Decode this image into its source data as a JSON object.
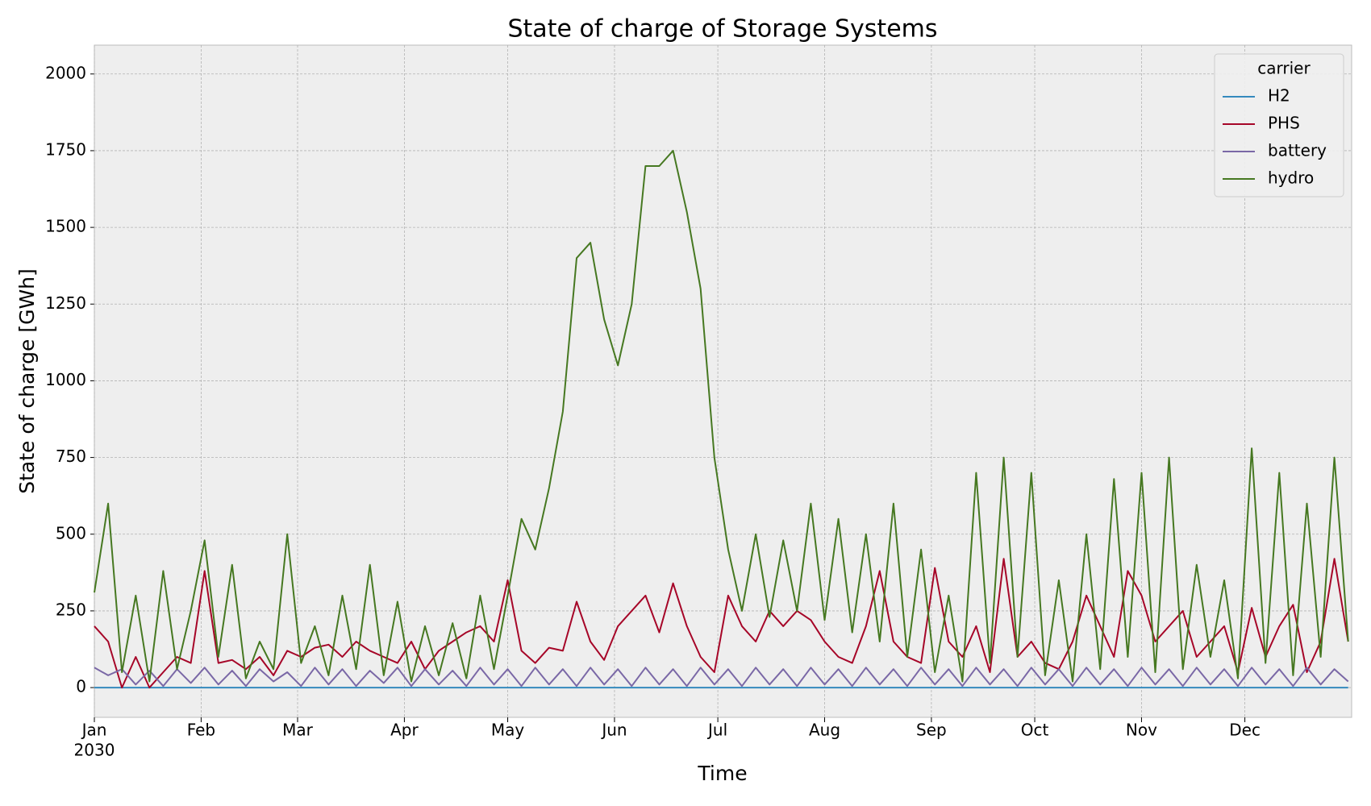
{
  "chart_data": {
    "type": "line",
    "title": "State of charge of Storage Systems",
    "x_label": "Time",
    "y_label": "State of charge [GWh]",
    "x_year_label": "2030",
    "legend_title": "carrier",
    "legend": "upper right",
    "grid": true,
    "xlim": [
      0,
      365
    ],
    "xticks": [
      {
        "value": 0,
        "label": "Jan"
      },
      {
        "value": 31,
        "label": "Feb"
      },
      {
        "value": 59,
        "label": "Mar"
      },
      {
        "value": 90,
        "label": "Apr"
      },
      {
        "value": 120,
        "label": "May"
      },
      {
        "value": 151,
        "label": "Jun"
      },
      {
        "value": 181,
        "label": "Jul"
      },
      {
        "value": 212,
        "label": "Aug"
      },
      {
        "value": 243,
        "label": "Sep"
      },
      {
        "value": 273,
        "label": "Oct"
      },
      {
        "value": 304,
        "label": "Nov"
      },
      {
        "value": 334,
        "label": "Dec"
      }
    ],
    "ylim": [
      -97,
      2094
    ],
    "yticks": [
      0,
      250,
      500,
      750,
      1000,
      1250,
      1500,
      1750,
      2000
    ],
    "x": [
      0,
      4,
      8,
      12,
      16,
      20,
      24,
      28,
      32,
      36,
      40,
      44,
      48,
      52,
      56,
      60,
      64,
      68,
      72,
      76,
      80,
      84,
      88,
      92,
      96,
      100,
      104,
      108,
      112,
      116,
      120,
      124,
      128,
      132,
      136,
      140,
      144,
      148,
      152,
      156,
      160,
      164,
      168,
      172,
      176,
      180,
      184,
      188,
      192,
      196,
      200,
      204,
      208,
      212,
      216,
      220,
      224,
      228,
      232,
      236,
      240,
      244,
      248,
      252,
      256,
      260,
      264,
      268,
      272,
      276,
      280,
      284,
      288,
      292,
      296,
      300,
      304,
      308,
      312,
      316,
      320,
      324,
      328,
      332,
      336,
      340,
      344,
      348,
      352,
      356,
      360,
      364
    ],
    "series": [
      {
        "name": "H2",
        "color": "#348ABD",
        "values": [
          0,
          0,
          0,
          0,
          0,
          0,
          0,
          0,
          0,
          0,
          0,
          0,
          0,
          0,
          0,
          0,
          0,
          0,
          0,
          0,
          0,
          0,
          0,
          0,
          0,
          0,
          0,
          0,
          0,
          0,
          0,
          0,
          0,
          0,
          0,
          0,
          0,
          0,
          0,
          0,
          0,
          0,
          0,
          0,
          0,
          0,
          0,
          0,
          0,
          0,
          0,
          0,
          0,
          0,
          0,
          0,
          0,
          0,
          0,
          0,
          0,
          0,
          0,
          0,
          0,
          0,
          0,
          0,
          0,
          0,
          0,
          0,
          0,
          0,
          0,
          0,
          0,
          0,
          0,
          0,
          0,
          0,
          0,
          0,
          0,
          0,
          0,
          0,
          0,
          0,
          0,
          0
        ]
      },
      {
        "name": "PHS",
        "color": "#A60628",
        "values": [
          200,
          150,
          0,
          100,
          0,
          50,
          100,
          80,
          380,
          80,
          90,
          60,
          100,
          40,
          120,
          100,
          130,
          140,
          100,
          150,
          120,
          100,
          80,
          150,
          60,
          120,
          150,
          180,
          200,
          150,
          350,
          120,
          80,
          130,
          120,
          280,
          150,
          90,
          200,
          250,
          300,
          180,
          340,
          200,
          100,
          50,
          300,
          200,
          150,
          250,
          200,
          250,
          220,
          150,
          100,
          80,
          200,
          380,
          150,
          100,
          80,
          390,
          150,
          100,
          200,
          50,
          420,
          100,
          150,
          80,
          60,
          150,
          300,
          200,
          100,
          380,
          300,
          150,
          200,
          250,
          100,
          150,
          200,
          50,
          260,
          100,
          200,
          270,
          50,
          150,
          420,
          150
        ]
      },
      {
        "name": "battery",
        "color": "#7A68A6",
        "values": [
          65,
          40,
          60,
          10,
          55,
          5,
          60,
          15,
          65,
          10,
          55,
          5,
          60,
          20,
          50,
          5,
          65,
          10,
          60,
          5,
          55,
          15,
          65,
          5,
          60,
          10,
          55,
          5,
          65,
          10,
          60,
          5,
          65,
          10,
          60,
          5,
          65,
          10,
          60,
          5,
          65,
          10,
          60,
          5,
          65,
          10,
          60,
          5,
          65,
          10,
          60,
          5,
          65,
          10,
          60,
          5,
          65,
          10,
          60,
          5,
          65,
          10,
          60,
          5,
          65,
          10,
          60,
          5,
          65,
          10,
          60,
          5,
          65,
          10,
          60,
          5,
          65,
          10,
          60,
          5,
          65,
          10,
          60,
          5,
          65,
          10,
          60,
          5,
          65,
          10,
          60,
          20
        ]
      },
      {
        "name": "hydro",
        "color": "#467821",
        "values": [
          310,
          600,
          50,
          300,
          20,
          380,
          60,
          250,
          480,
          100,
          400,
          30,
          150,
          60,
          500,
          80,
          200,
          40,
          300,
          60,
          400,
          40,
          280,
          20,
          200,
          40,
          210,
          30,
          300,
          60,
          300,
          550,
          450,
          650,
          900,
          1400,
          1450,
          1200,
          1050,
          1250,
          1700,
          1700,
          1750,
          1550,
          1300,
          750,
          450,
          250,
          500,
          230,
          480,
          250,
          600,
          220,
          550,
          180,
          500,
          150,
          600,
          100,
          450,
          50,
          300,
          20,
          700,
          80,
          750,
          100,
          700,
          40,
          350,
          20,
          500,
          60,
          680,
          100,
          700,
          50,
          750,
          60,
          400,
          100,
          350,
          30,
          780,
          80,
          700,
          40,
          600,
          100,
          750,
          150
        ]
      }
    ]
  }
}
